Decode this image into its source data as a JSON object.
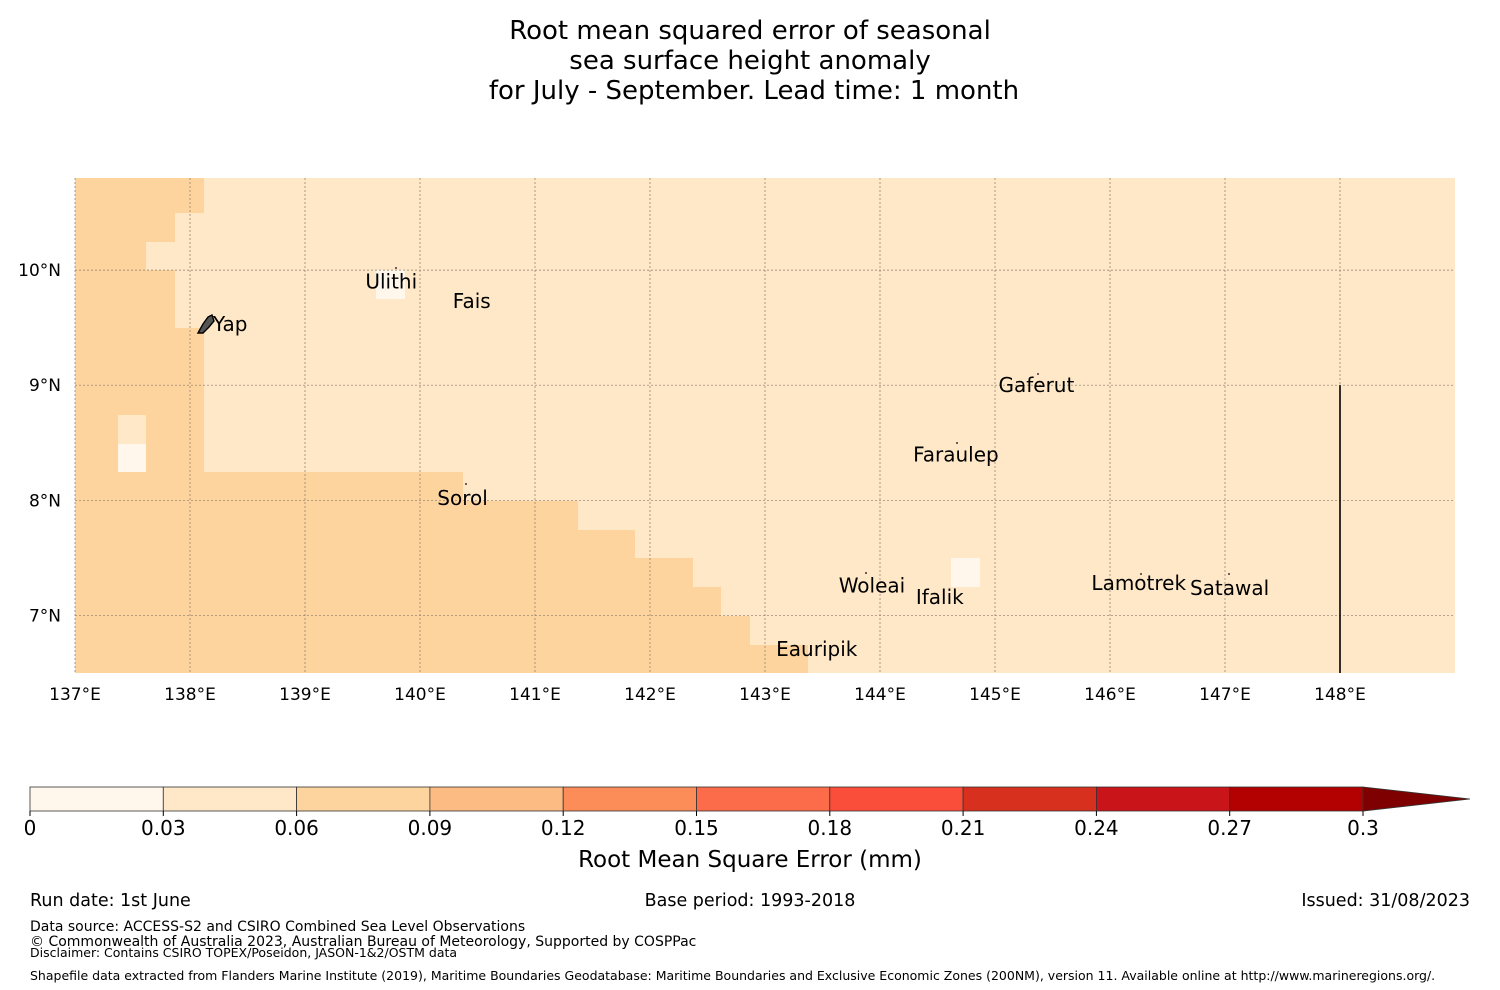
{
  "title": {
    "lines": [
      "Root mean squared error of seasonal",
      "sea surface height anomaly",
      "for July - September. Lead time: 1 month"
    ]
  },
  "map": {
    "extent": {
      "lon": [
        137.0,
        149.0
      ],
      "lat": [
        6.5,
        10.8
      ]
    },
    "lon_ticks": [
      {
        "value": 137,
        "label": "137°E"
      },
      {
        "value": 138,
        "label": "138°E"
      },
      {
        "value": 139,
        "label": "139°E"
      },
      {
        "value": 140,
        "label": "140°E"
      },
      {
        "value": 141,
        "label": "141°E"
      },
      {
        "value": 142,
        "label": "142°E"
      },
      {
        "value": 143,
        "label": "143°E"
      },
      {
        "value": 144,
        "label": "144°E"
      },
      {
        "value": 145,
        "label": "145°E"
      },
      {
        "value": 146,
        "label": "146°E"
      },
      {
        "value": 147,
        "label": "147°E"
      },
      {
        "value": 148,
        "label": "148°E"
      }
    ],
    "lat_ticks": [
      {
        "value": 10,
        "label": "10°N"
      },
      {
        "value": 9,
        "label": "9°N"
      },
      {
        "value": 8,
        "label": "8°N"
      },
      {
        "value": 7,
        "label": "7°N"
      }
    ],
    "fill_colors": {
      "low": "#fee8c8",
      "mid": "#fdd49e",
      "lowest": "#fff7ec"
    },
    "places": [
      {
        "name": "Ulithi",
        "lon": 139.75,
        "lat": 9.9
      },
      {
        "name": "Fais",
        "lon": 140.45,
        "lat": 9.73
      },
      {
        "name": "Yap",
        "lon": 138.35,
        "lat": 9.53
      },
      {
        "name": "Gaferut",
        "lon": 145.36,
        "lat": 9.0
      },
      {
        "name": "Faraulep",
        "lon": 144.66,
        "lat": 8.4
      },
      {
        "name": "Sorol",
        "lon": 140.37,
        "lat": 8.02
      },
      {
        "name": "Woleai",
        "lon": 143.93,
        "lat": 7.26
      },
      {
        "name": "Ifalik",
        "lon": 144.52,
        "lat": 7.16
      },
      {
        "name": "Lamotrek",
        "lon": 146.25,
        "lat": 7.28
      },
      {
        "name": "Satawal",
        "lon": 147.04,
        "lat": 7.24
      },
      {
        "name": "Eauripik",
        "lon": 143.45,
        "lat": 6.71
      }
    ],
    "boundary_line": {
      "lon": 148.0,
      "lat": [
        6.5,
        9.0
      ]
    }
  },
  "colorbar": {
    "ticks": [
      "0",
      "0.03",
      "0.06",
      "0.09",
      "0.12",
      "0.15",
      "0.18",
      "0.21",
      "0.24",
      "0.27",
      "0.3"
    ],
    "colors": [
      "#fff7ec",
      "#fee8c8",
      "#fdd49e",
      "#fdbb84",
      "#fc8d59",
      "#fc6b4a",
      "#fb4e3a",
      "#d7301f",
      "#c9141a",
      "#b30000",
      "#7f0000"
    ],
    "label": "Root Mean Square Error (mm)"
  },
  "footer": {
    "run_date": "Run date: 1st June",
    "base_period": "Base period: 1993-2018",
    "issued": "Issued: 31/08/2023",
    "data_source": "Data source: ACCESS-S2 and CSIRO Combined Sea Level Observations",
    "copyright": "© Commonwealth of Australia 2023, Australian Bureau of Meteorology, Supported by COSPPac",
    "disclaimer": "Disclaimer: Contains CSIRO TOPEX/Poseidon, JASON-1&2/OSTM data",
    "shapefile": "Shapefile data extracted from Flanders Marine Institute (2019), Maritime Boundaries Geodatabase: Maritime Boundaries and Exclusive Economic Zones (200NM), version 11. Available online at http://www.marineregions.org/."
  }
}
